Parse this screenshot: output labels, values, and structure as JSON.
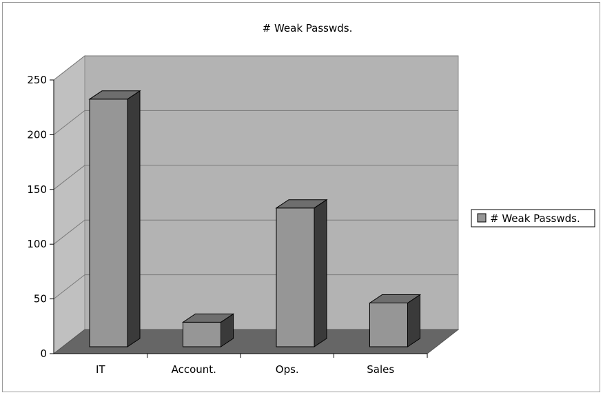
{
  "chart_data": {
    "type": "bar",
    "title": "# Weak Passwds.",
    "categories": [
      "IT",
      "Account.",
      "Ops.",
      "Sales"
    ],
    "series": [
      {
        "name": "# Weak Passwds.",
        "values": [
          232,
          23,
          130,
          41
        ]
      }
    ],
    "ylim": [
      0,
      250
    ],
    "yticks": [
      0,
      50,
      100,
      150,
      200,
      250
    ],
    "xlabel": "",
    "ylabel": "",
    "grid": true,
    "legend": "right",
    "colors": {
      "bar_front": "#969696",
      "bar_top": "#6e6e6e",
      "bar_side": "#3a3a3a",
      "wall_back": "#b3b3b3",
      "wall_left": "#c0c0c0",
      "floor": "#666666"
    }
  }
}
